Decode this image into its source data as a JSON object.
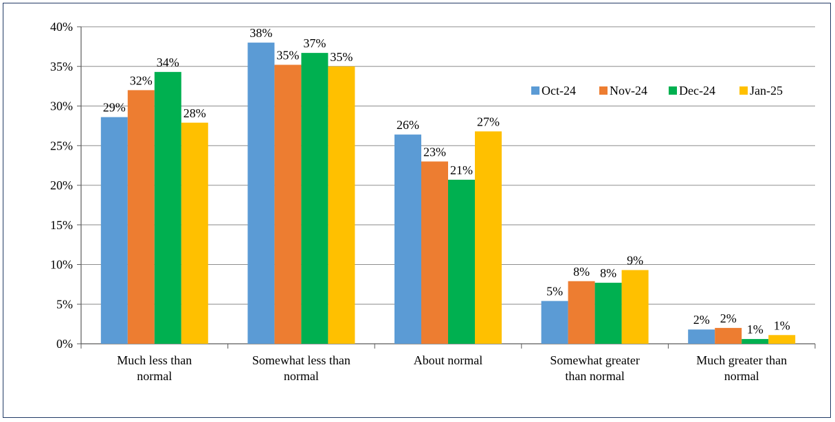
{
  "chart_data": {
    "type": "bar",
    "title": "",
    "xlabel": "",
    "ylabel": "",
    "ylim": [
      0,
      40
    ],
    "yticks": [
      0,
      5,
      10,
      15,
      20,
      25,
      30,
      35,
      40
    ],
    "y_tick_format": "%",
    "grid": true,
    "legend_position": "top-right",
    "categories": [
      [
        "Much less than",
        "normal"
      ],
      [
        "Somewhat less than",
        "normal"
      ],
      [
        "About normal"
      ],
      [
        "Somewhat greater",
        "than normal"
      ],
      [
        "Much greater than",
        "normal"
      ]
    ],
    "series": [
      {
        "name": "Oct-24",
        "color": "#5b9bd5",
        "values": [
          28.6,
          38.0,
          26.4,
          5.4,
          1.8
        ],
        "labels": [
          "29%",
          "38%",
          "26%",
          "5%",
          "2%"
        ]
      },
      {
        "name": "Nov-24",
        "color": "#ed7d31",
        "values": [
          32.0,
          35.2,
          23.0,
          7.9,
          2.0
        ],
        "labels": [
          "32%",
          "35%",
          "23%",
          "8%",
          "2%"
        ]
      },
      {
        "name": "Dec-24",
        "color": "#00b050",
        "values": [
          34.3,
          36.7,
          20.7,
          7.7,
          0.6
        ],
        "labels": [
          "34%",
          "37%",
          "21%",
          "8%",
          "1%"
        ]
      },
      {
        "name": "Jan-25",
        "color": "#ffc000",
        "values": [
          27.9,
          35.0,
          26.8,
          9.3,
          1.1
        ],
        "labels": [
          "28%",
          "35%",
          "27%",
          "9%",
          "1%"
        ]
      }
    ]
  }
}
